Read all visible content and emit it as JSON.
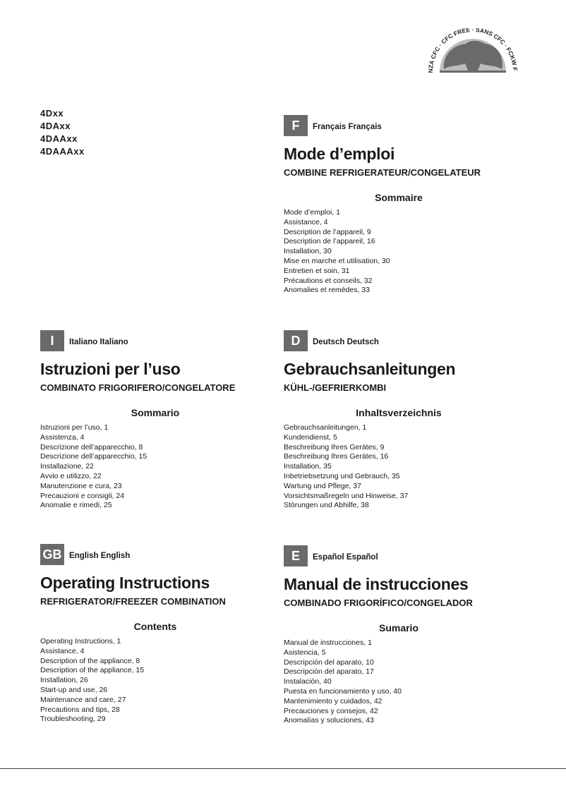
{
  "models": [
    "4Dxx",
    "4DAxx",
    "4DAAxx",
    "4DAAAxx"
  ],
  "logo": {
    "text": "SENZA CFC · CFC FREE · SANS CFC · FCKW FREI",
    "color": "#6a6a6a"
  },
  "sections": [
    {
      "code": "F",
      "language": "Français Français",
      "title": "Mode d’emploi",
      "subtitle": "COMBINE REFRIGERATEUR/CONGELATEUR",
      "heading": "Sommaire",
      "items": [
        "Mode d’emploi, 1",
        "Assistance, 4",
        "Description de l’appareil, 9",
        "Description de l’appareil, 16",
        "Installation, 30",
        "Mise en marche et utilisation, 30",
        "Entretien et soin, 31",
        "Précautions et conseils, 32",
        "Anomalies et remèdes, 33"
      ]
    },
    {
      "code": "I",
      "language": "Italiano Italiano",
      "title": "Istruzioni per l’uso",
      "subtitle": "COMBINATO FRIGORIFERO/CONGELATORE",
      "heading": "Sommario",
      "items": [
        "Istruzioni per l’uso, 1",
        "Assistenza, 4",
        "Descrizione dell’apparecchio, 8",
        "Descrizione dell’apparecchio, 15",
        "Installazione, 22",
        "Avvio e utilizzo, 22",
        "Manutenzione e cura, 23",
        "Precauzioni e consigli, 24",
        "Anomalie e rimedi, 25"
      ]
    },
    {
      "code": "D",
      "language": "Deutsch Deutsch",
      "title": "Gebrauchsanleitungen",
      "subtitle": "KÜHL-/GEFRIERKOMBI",
      "heading": "Inhaltsverzeichnis",
      "items": [
        "Gebrauchsanleitungen, 1",
        "Kundendienst, 5",
        "Beschreibung Ihres Gerätes, 9",
        "Beschreibung Ihres Gerätes, 16",
        "Installation, 35",
        "Inbetriebsetzung und Gebrauch, 35",
        "Wartung und Pflege, 37",
        "Vorsichtsmaßregeln und Hinweise, 37",
        "Störungen und Abhilfe, 38"
      ]
    },
    {
      "code": "GB",
      "language": "English English",
      "title": "Operating Instructions",
      "subtitle": "REFRIGERATOR/FREEZER COMBINATION",
      "heading": "Contents",
      "items": [
        "Operating Instructions, 1",
        "Assistance, 4",
        "Description of the appliance, 8",
        "Description of the appliance, 15",
        "Installation, 26",
        "Start-up and use, 26",
        "Maintenance and care, 27",
        "Precautions and tips, 28",
        "Troubleshooting, 29"
      ]
    },
    {
      "code": "E",
      "language": "Español Español",
      "title": "Manual de instrucciones",
      "subtitle": "COMBINADO FRIGORÍFICO/CONGELADOR",
      "heading": "Sumario",
      "items": [
        "Manual de instrucciones, 1",
        "Asistencia, 5",
        "Descripción del aparato, 10",
        "Descripción del aparato, 17",
        "Instalación, 40",
        "Puesta en funcionamiento y uso, 40",
        "Mantenimiento y cuidados, 42",
        "Precauciones y consejos, 42",
        "Anomalías y soluciones, 43"
      ]
    }
  ]
}
